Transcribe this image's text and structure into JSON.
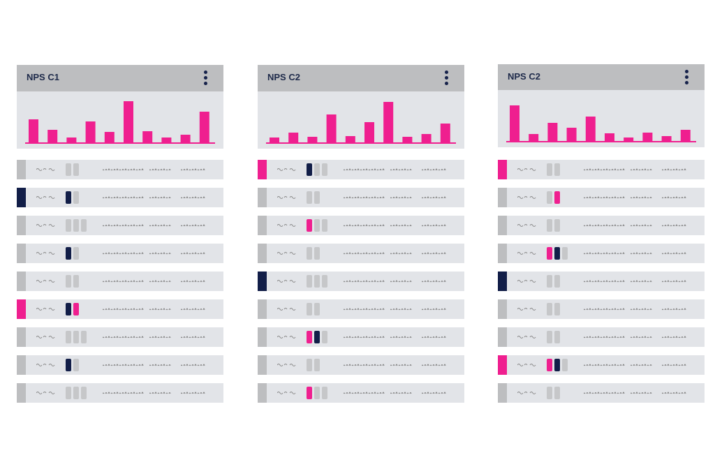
{
  "colors": {
    "pink": "#ef1f8f",
    "navy": "#121e48",
    "gray": "#bdbec0",
    "panel_bg": "#e2e4e8"
  },
  "icons": {
    "menu": "kebab-vertical-icon"
  },
  "panels": [
    {
      "title": "NPS C1",
      "chart_data": {
        "type": "bar",
        "values": [
          33,
          18,
          7,
          30,
          15,
          59,
          16,
          7,
          11,
          44
        ],
        "ylim": [
          0,
          64
        ]
      },
      "rows": [
        {
          "marker": "gray",
          "cells": [
            "gray",
            "gray"
          ]
        },
        {
          "marker": "navy",
          "cells": [
            "navy",
            "gray"
          ]
        },
        {
          "marker": "gray",
          "cells": [
            "gray",
            "gray",
            "gray"
          ]
        },
        {
          "marker": "gray",
          "cells": [
            "navy",
            "gray"
          ]
        },
        {
          "marker": "gray",
          "cells": [
            "gray",
            "gray"
          ]
        },
        {
          "marker": "pink",
          "cells": [
            "navy",
            "pink"
          ]
        },
        {
          "marker": "gray",
          "cells": [
            "gray",
            "gray",
            "gray"
          ]
        },
        {
          "marker": "gray",
          "cells": [
            "navy",
            "gray"
          ]
        },
        {
          "marker": "gray",
          "cells": [
            "gray",
            "gray",
            "gray"
          ]
        }
      ]
    },
    {
      "title": "NPS C2",
      "chart_data": {
        "type": "bar",
        "values": [
          7,
          14,
          8,
          40,
          9,
          29,
          58,
          8,
          12,
          27
        ],
        "ylim": [
          0,
          64
        ]
      },
      "rows": [
        {
          "marker": "pink",
          "cells": [
            "navy",
            "gray",
            "gray"
          ]
        },
        {
          "marker": "gray",
          "cells": [
            "gray",
            "gray"
          ]
        },
        {
          "marker": "gray",
          "cells": [
            "pink",
            "gray",
            "gray"
          ]
        },
        {
          "marker": "gray",
          "cells": [
            "gray",
            "gray"
          ]
        },
        {
          "marker": "navy",
          "cells": [
            "gray",
            "gray",
            "gray"
          ]
        },
        {
          "marker": "gray",
          "cells": [
            "gray",
            "gray"
          ]
        },
        {
          "marker": "gray",
          "cells": [
            "pink",
            "navy",
            "gray"
          ]
        },
        {
          "marker": "gray",
          "cells": [
            "gray",
            "gray"
          ]
        },
        {
          "marker": "gray",
          "cells": [
            "pink",
            "gray",
            "gray"
          ]
        }
      ]
    },
    {
      "title": "NPS C2",
      "chart_data": {
        "type": "bar",
        "values": [
          51,
          10,
          26,
          19,
          35,
          11,
          5,
          12,
          7,
          16
        ],
        "ylim": [
          0,
          64
        ]
      },
      "rows": [
        {
          "marker": "pink",
          "cells": [
            "gray",
            "gray"
          ]
        },
        {
          "marker": "gray",
          "cells": [
            "gray",
            "pink"
          ]
        },
        {
          "marker": "gray",
          "cells": [
            "gray",
            "gray"
          ]
        },
        {
          "marker": "gray",
          "cells": [
            "pink",
            "navy",
            "gray"
          ]
        },
        {
          "marker": "navy",
          "cells": [
            "gray",
            "gray"
          ]
        },
        {
          "marker": "gray",
          "cells": [
            "gray",
            "gray"
          ]
        },
        {
          "marker": "gray",
          "cells": [
            "gray",
            "gray"
          ]
        },
        {
          "marker": "pink",
          "cells": [
            "pink",
            "navy",
            "gray"
          ]
        },
        {
          "marker": "gray",
          "cells": [
            "gray",
            "gray"
          ]
        }
      ]
    }
  ]
}
